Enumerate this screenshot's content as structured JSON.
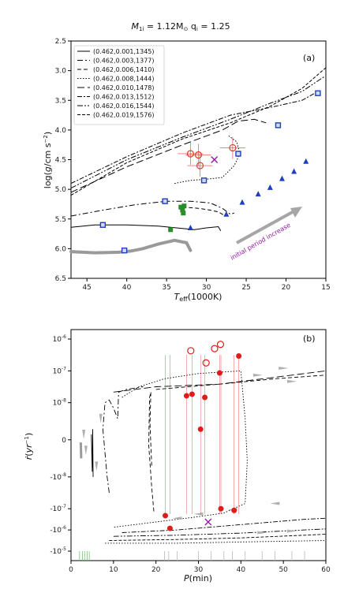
{
  "figure_title": "M_1i = 1.12M⊙ q_i = 1.25",
  "chart_data": [
    {
      "panel": "(a)",
      "type": "line",
      "xlabel": "T_eff(1000K)",
      "ylabel": "log(g/cm s^-2)",
      "xlim": [
        47,
        15
      ],
      "ylim": [
        6.5,
        2.5
      ],
      "xticks": [
        "45",
        "40",
        "35",
        "30",
        "25",
        "20",
        "15"
      ],
      "yticks": [
        "2.5",
        "3.0",
        "3.5",
        "4.0",
        "4.5",
        "5.0",
        "5.5",
        "6.0",
        "6.5"
      ],
      "legend_position": "top-left",
      "annotation": "initial period increase",
      "series": [
        {
          "name": "(0.462,0.001,1345)",
          "dash": "solid",
          "x": [
            47,
            44,
            40,
            36,
            33,
            31.5,
            30,
            28.5,
            28.2
          ],
          "y": [
            5.64,
            5.6,
            5.6,
            5.62,
            5.66,
            5.68,
            5.65,
            5.63,
            5.7
          ]
        },
        {
          "name": "(0.462,0.003,1377)",
          "dash": "dashdot",
          "x": [
            47,
            43,
            39,
            35,
            32,
            29.5,
            28,
            27,
            26.5
          ],
          "y": [
            5.45,
            5.35,
            5.26,
            5.2,
            5.2,
            5.23,
            5.32,
            5.42,
            5.4
          ]
        },
        {
          "name": "(0.462,0.006,1410)",
          "dash": "dash",
          "x": [
            33,
            31,
            29.5,
            28.5,
            28,
            27.5
          ],
          "y": [
            5.3,
            5.32,
            5.35,
            5.38,
            5.42,
            5.45
          ]
        },
        {
          "name": "(0.462,0.008,1444)",
          "dash": "dot",
          "x": [
            34,
            32,
            30,
            28,
            26.5,
            25.8,
            26.2,
            27.2
          ],
          "y": [
            4.9,
            4.85,
            4.83,
            4.8,
            4.6,
            4.4,
            4.2,
            4.1
          ]
        },
        {
          "name": "(0.462,0.010,1478)",
          "dash": "longdash",
          "x": [
            47,
            40,
            33,
            28,
            26,
            24,
            22.5
          ],
          "y": [
            5.05,
            4.62,
            4.25,
            4.0,
            3.85,
            3.82,
            3.88
          ]
        },
        {
          "name": "(0.462,0.013,1512)",
          "dash": "dashdot2",
          "x": [
            47,
            40,
            33,
            27,
            22,
            18,
            16
          ],
          "y": [
            4.9,
            4.45,
            4.05,
            3.75,
            3.62,
            3.5,
            3.35
          ]
        },
        {
          "name": "(0.462,0.016,1544)",
          "dash": "dashdotdot",
          "x": [
            47,
            40,
            33,
            27,
            22,
            18,
            15.2
          ],
          "y": [
            4.98,
            4.5,
            4.12,
            3.82,
            3.55,
            3.35,
            3.1
          ]
        },
        {
          "name": "(0.462,0.019,1576)",
          "dash": "dash2",
          "x": [
            47,
            40,
            33,
            27,
            22,
            18,
            15
          ],
          "y": [
            5.1,
            4.55,
            4.15,
            3.88,
            3.6,
            3.3,
            2.95
          ]
        }
      ],
      "markers": {
        "blue_squares": {
          "color": "#1f3fbf",
          "x": [
            43,
            40.3,
            35.2,
            30.3,
            26,
            21,
            16
          ],
          "y": [
            5.6,
            6.03,
            5.2,
            4.85,
            4.4,
            3.92,
            3.38
          ]
        },
        "blue_triangles": {
          "color": "#1f3fbf",
          "x": [
            32,
            27.5,
            25.5,
            23.5,
            22,
            20.5,
            19,
            17.5
          ],
          "y": [
            5.65,
            5.42,
            5.22,
            5.08,
            4.97,
            4.82,
            4.7,
            4.53
          ]
        },
        "green_squares": {
          "color": "#2b8c2b",
          "x": [
            34.5,
            33.2,
            33,
            32.9,
            32.8
          ],
          "y": [
            5.68,
            5.3,
            5.35,
            5.4,
            5.28
          ]
        },
        "red_open_circles": {
          "color": "#e03a2e",
          "x": [
            32,
            31,
            30.8,
            26.7
          ],
          "y": [
            4.4,
            4.42,
            4.6,
            4.3
          ]
        },
        "purple_cross": {
          "color": "#8b1a9b",
          "x": [
            29
          ],
          "y": [
            4.5
          ]
        }
      },
      "grey_tracks": [
        {
          "x": [
            47,
            44,
            41,
            39.5,
            38,
            36,
            34,
            32.5,
            32
          ],
          "y": [
            6.05,
            6.07,
            6.06,
            6.04,
            6.0,
            5.92,
            5.86,
            5.9,
            6.03
          ]
        }
      ]
    },
    {
      "panel": "(b)",
      "type": "line",
      "xlabel": "P(min)",
      "ylabel": "ṙ(yr^-1)",
      "xlim": [
        0,
        60
      ],
      "xticks": [
        "0",
        "10",
        "20",
        "30",
        "40",
        "50",
        "60"
      ],
      "yticks": [
        "10^-6",
        "10^-7",
        "10^-8",
        "0",
        "-10^-8",
        "-10^-7",
        "-10^-6",
        "-10^-5"
      ],
      "red_filled_circles": {
        "color": "#e01b1b",
        "x": [
          27.2,
          28.5,
          30.5,
          31.5,
          35,
          35.3,
          38.4,
          39.5,
          22.2,
          23.3
        ],
        "y_label_units": "symlog",
        "y": [
          0.93,
          0.96,
          0.3,
          0.9,
          1.36,
          -1.2,
          -1.23,
          1.68,
          -1.33,
          -1.57
        ]
      },
      "red_open_circles": {
        "color": "#e01b1b",
        "x": [
          28.2,
          31.8,
          33.8,
          35.2
        ],
        "y": [
          1.78,
          1.55,
          1.82,
          1.9
        ]
      },
      "purple_cross": {
        "color": "#8b1a9b",
        "x": [
          32.3
        ],
        "y": [
          -1.45
        ]
      }
    }
  ],
  "legend_title": ""
}
